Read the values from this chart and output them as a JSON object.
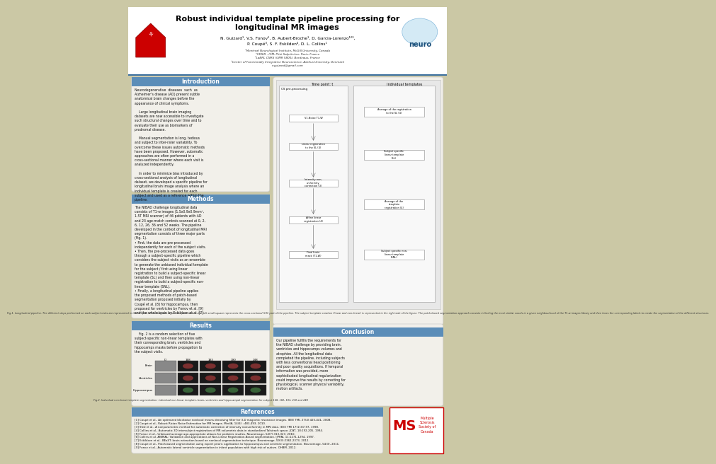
{
  "title": "Robust individual template pipeline processing for\nlongitudinal MR images",
  "authors": "N. Guizard¹, V.S. Fonov¹, B. Aubert-Broche¹, D. Garcia-Lorenzo¹²³,\nP. Coupé³, S. F. Eskilden⁴, D. L. Collins¹",
  "affiliations": "¹Montreal Neurological Institute, McGill University, Canada\n²CENIR - ICM, Pitié Salpêtrière, Paris, France\n³LaBRI, CNRS (UMR 5800), Bordeaux, France\n⁴Center of Functionally Integrative Neuroscience, Aarhus University, Denmark\nn.guizard@gmail.com",
  "intro_title": "Introduction",
  "intro_body": "Neurodegenerative  diseases  such  as  Alzheimer's disease (AD) present subtle anatomical brain changes before the appearance of clinical symptoms.\n\n    Large longitudinal brain imaging datasets are now accessible to investigate such structural changes over time and to evaluate their use as biomarkers of prodromal disease.\n\n    Manual segmentation is long, tedious and subject to inter-rater variability. To overcome these issues automatic methods have been proposed. However, automatic approaches are often performed in a cross-sectional manner where each visit is analyzed independently.\n\n    In order to minimize bias introduced by cross-sectional analysis of longitudinal dataset, we developed a specific pipeline for longitudinal brain image analysis where an individual template is created for each subject and used as a reference within the pipeline.",
  "methods_title": "Methods",
  "methods_body": "The NIBAD challenge longitudinal data consists of T1-w images (1.5x0.9x0.9mm³, 1.5T MRI scanner) of 46 patients with AD and 23 age-match controls scanned at 0, 2, 6, 12, 26, 36 and 52 weeks. The pipeline developed in the context of longitudinal MRI segmentation consists of three major parts (Fig. 1).\n• First, the data are pre-processed independently for each of the subject visits.\n• Then, the pre-processed data goes through a subject-specific pipeline which considers the subject visits as an ensemble to generate the unbiased individual template for the subject / first using linear registration to build a subject-specific linear template (SL) and then using non-linear registration to build a subject-specific non-linear template (SNL).\n• Finally, a longitudinal pipeline applies the proposed methods of patch-based segmentation proposed initially by Coupé et al. [8] for hippocampus, then proposed for ventricles by Fonov et al. [9] and the whole brain by Eskildsen et al. [7].",
  "results_title": "Results",
  "results_body": "    Fig. 2 is a random selection of five subject-specific non-linear templates with their corresponding brain, ventricles and hippocamps masks before propagation to the subject visits.",
  "fig2_caption": "Fig.2. Individual non-linear template segmentation: individual non-linear template, brain, ventricles and hippocampal segmentation for subject 168, 182, 183, 230 and 248",
  "fig1_caption": "Fig.1. Longitudinal pipeline. The different steps performed on each subject visits are represented in the left part of the diagram, where the processes in the left small square represents the cross-sectional (CS) part of the pipeline. The subject template creation (linear and non-linear) is represented in the right side of the figure. The patch-based segmentation approach consists in finding the most similar voxels in a given neighbourhood of the T1-w images library and then fuses the corresponding labels to create the segmentation of the different structures.",
  "conclusion_title": "Conclusion",
  "conclusion_body": "Our pipeline fulfills the requirements for the NIBAD challenge by providing brain, ventricles and hippocamps volumes and atrophies. All the longitudinal data completed the pipeline, including subjects with less conventional head positioning and poor quality acquisitions. If temporal information was provided, more sophisticated longitudinal regularization could improve the results by correcting for physiological, scanner physical variability, motion artifacts.",
  "references_title": "References",
  "references": [
    "[1] Coupé et al., An optimized blockwise nonlocal means denoising filter for 3-D magnetic resonance images. IEEE TMI, 27(4):425-441, 2008.",
    "[2] Coupé et al., Robust Rician Noise Estimation for MR Images. MedIA, 14(4) : 483-493, 2010.",
    "[3] Sled et al., A nonparametric method for automatic correction of intensity nonuniformity in MRI data. IEEE TMI 17(1):87-97, 1998.",
    "[4] Collins et al., Automatic 3D intersubject registration of MR volumetric data in standardized Talairach space. JCAT, 18:192-205, 1994.",
    "[5] Fonov et al., Unbiased average age-appropriate atlases for pediatric studies. Neuroimage, 54(7):313-327, 2010.",
    "[6] Collins et al. ANIMAL: Validation and applications of Non-Linear Registration-Based segmentation. IJPRAI, 11:1271-1294, 1997.",
    "[7] Eskildsen et al., BEaST: brain extraction based on nonlocal segmentation technique. Neuroimage, 59(3):2362-2373, 2012.",
    "[8] Coupé et al., Patch-based segmentation using expert priors: application to hippocampus and ventricle segmentation. Neuroimage, 54(3), 2011.",
    "[9] Fonov et al., Automatic lateral ventricle segmentation in infant population with high risk of autism. OHBM, 2012."
  ],
  "poster_bg": "#cbc8a5",
  "panel_bg": "#f2f0ea",
  "header_bg": "#ffffff",
  "section_bar_color": "#5b8db8",
  "section_bar_text": "#ffffff",
  "title_color": "#000000",
  "body_color": "#111111",
  "fig_caption_color": "#333333"
}
